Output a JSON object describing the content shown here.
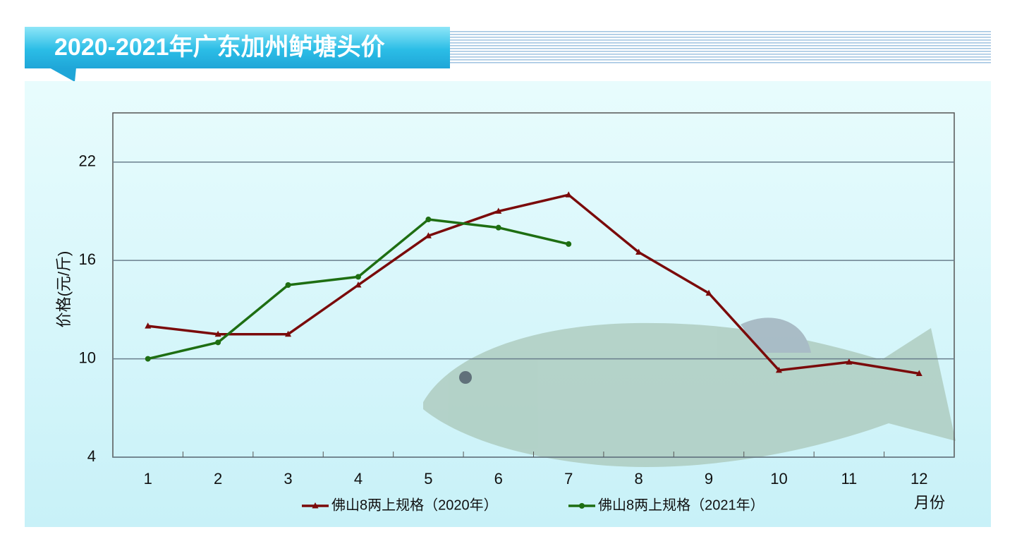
{
  "chart_data": {
    "type": "line",
    "title": "2020-2021年广东加州鲈塘头价",
    "y_label": "价格(元/斤)",
    "x_label": "月份",
    "categories": [
      "1",
      "2",
      "3",
      "4",
      "5",
      "6",
      "7",
      "8",
      "9",
      "10",
      "11",
      "12"
    ],
    "series": [
      {
        "name": "佛山8两上规格（2020年）",
        "color": "#7a0a0a",
        "marker": "triangle",
        "values": [
          12.0,
          11.5,
          11.5,
          14.5,
          17.5,
          19.0,
          20.0,
          16.5,
          14.0,
          9.3,
          9.8,
          9.1
        ]
      },
      {
        "name": "佛山8两上规格（2021年）",
        "color": "#1e6e12",
        "marker": "circle",
        "values": [
          10.0,
          11.0,
          14.5,
          15.0,
          18.5,
          18.0,
          17.0,
          null,
          null,
          null,
          null,
          null
        ]
      }
    ],
    "ylim": [
      4,
      25
    ],
    "yticks": [
      4,
      10,
      16,
      22
    ],
    "grid": true
  }
}
